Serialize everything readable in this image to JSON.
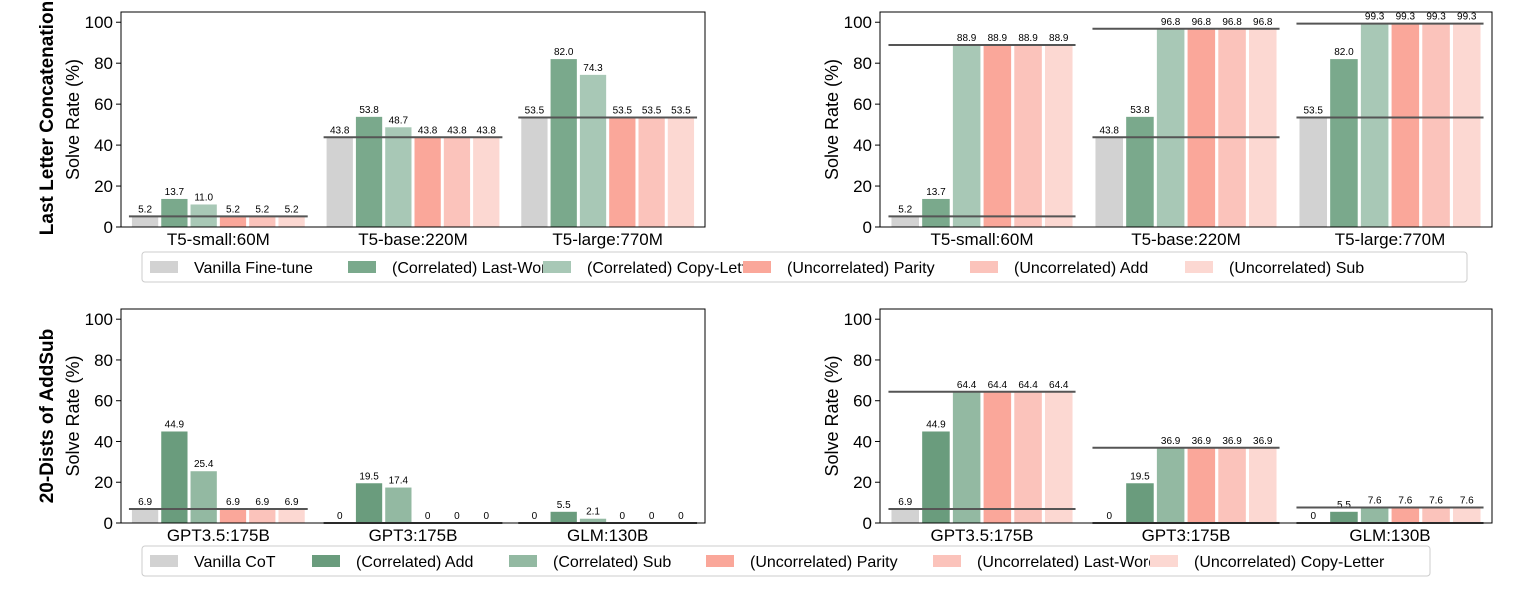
{
  "row_titles": [
    "Last Letter Concatenation",
    "20-Dists of AddSub"
  ],
  "legends": [
    {
      "items": [
        "Vanilla Fine-tune",
        "(Correlated) Last-Word",
        "(Correlated) Copy-Letter",
        "(Uncorrelated) Parity",
        "(Uncorrelated) Add",
        "(Uncorrelated) Sub"
      ],
      "colors": [
        "#d2d2d2",
        "#7aa98c",
        "#a8c8b6",
        "#faa79a",
        "#fbc3bb",
        "#fcd8d2"
      ]
    },
    {
      "items": [
        "Vanilla CoT",
        "(Correlated) Add",
        "(Correlated) Sub",
        "(Uncorrelated) Parity",
        "(Uncorrelated) Last-Word",
        "(Uncorrelated) Copy-Letter"
      ],
      "colors": [
        "#d2d2d2",
        "#6a9c7d",
        "#93b9a2",
        "#faa79a",
        "#fbc3bb",
        "#fcd8d2"
      ]
    }
  ],
  "chart_data": [
    {
      "type": "bar",
      "ylabel": "Solve Rate (%)",
      "ylim": [
        0,
        105
      ],
      "yticks": [
        0,
        20,
        40,
        60,
        80,
        100
      ],
      "categories": [
        "T5-small:60M",
        "T5-base:220M",
        "T5-large:770M"
      ],
      "series_names": [
        "Vanilla Fine-tune",
        "(Correlated) Last-Word",
        "(Correlated) Copy-Letter",
        "(Uncorrelated) Parity",
        "(Uncorrelated) Add",
        "(Uncorrelated) Sub"
      ],
      "values": [
        [
          5.2,
          13.7,
          11.0,
          5.2,
          5.2,
          5.2
        ],
        [
          43.8,
          53.8,
          48.7,
          43.8,
          43.8,
          43.8
        ],
        [
          53.5,
          82.0,
          74.3,
          53.5,
          53.5,
          53.5
        ]
      ],
      "labels": [
        [
          "5.2",
          "13.7",
          "11.0",
          "5.2",
          "5.2",
          "5.2"
        ],
        [
          "43.8",
          "53.8",
          "48.7",
          "43.8",
          "43.8",
          "43.8"
        ],
        [
          "53.5",
          "82.0",
          "74.3",
          "53.5",
          "53.5",
          "53.5"
        ]
      ],
      "reference_lines": [
        [
          5.2
        ],
        [
          43.8
        ],
        [
          53.5
        ]
      ]
    },
    {
      "type": "bar",
      "ylabel": "Solve Rate (%)",
      "ylim": [
        0,
        105
      ],
      "yticks": [
        0,
        20,
        40,
        60,
        80,
        100
      ],
      "categories": [
        "T5-small:60M",
        "T5-base:220M",
        "T5-large:770M"
      ],
      "series_names": [
        "Vanilla Fine-tune",
        "(Correlated) Last-Word",
        "(Correlated) Copy-Letter",
        "(Uncorrelated) Parity",
        "(Uncorrelated) Add",
        "(Uncorrelated) Sub"
      ],
      "values": [
        [
          5.2,
          13.7,
          88.9,
          88.9,
          88.9,
          88.9
        ],
        [
          43.8,
          53.8,
          96.8,
          96.8,
          96.8,
          96.8
        ],
        [
          53.5,
          82.0,
          99.3,
          99.3,
          99.3,
          99.3
        ]
      ],
      "labels": [
        [
          "5.2",
          "13.7",
          "88.9",
          "88.9",
          "88.9",
          "88.9"
        ],
        [
          "43.8",
          "53.8",
          "96.8",
          "96.8",
          "96.8",
          "96.8"
        ],
        [
          "53.5",
          "82.0",
          "99.3",
          "99.3",
          "99.3",
          "99.3"
        ]
      ],
      "reference_lines": [
        [
          5.2,
          88.9
        ],
        [
          43.8,
          96.8
        ],
        [
          53.5,
          99.3
        ]
      ]
    },
    {
      "type": "bar",
      "ylabel": "Solve Rate (%)",
      "ylim": [
        0,
        105
      ],
      "yticks": [
        0,
        20,
        40,
        60,
        80,
        100
      ],
      "categories": [
        "GPT3.5:175B",
        "GPT3:175B",
        "GLM:130B"
      ],
      "series_names": [
        "Vanilla CoT",
        "(Correlated) Add",
        "(Correlated) Sub",
        "(Uncorrelated) Parity",
        "(Uncorrelated) Last-Word",
        "(Uncorrelated) Copy-Letter"
      ],
      "values": [
        [
          6.9,
          44.9,
          25.4,
          6.9,
          6.9,
          6.9
        ],
        [
          0,
          19.5,
          17.4,
          0,
          0,
          0
        ],
        [
          0,
          5.5,
          2.1,
          0,
          0,
          0
        ]
      ],
      "labels": [
        [
          "6.9",
          "44.9",
          "25.4",
          "6.9",
          "6.9",
          "6.9"
        ],
        [
          "0",
          "19.5",
          "17.4",
          "0",
          "0",
          "0"
        ],
        [
          "0",
          "5.5",
          "2.1",
          "0",
          "0",
          "0"
        ]
      ],
      "reference_lines": [
        [
          6.9
        ],
        [
          0
        ],
        [
          0
        ]
      ]
    },
    {
      "type": "bar",
      "ylabel": "Solve Rate (%)",
      "ylim": [
        0,
        105
      ],
      "yticks": [
        0,
        20,
        40,
        60,
        80,
        100
      ],
      "categories": [
        "GPT3.5:175B",
        "GPT3:175B",
        "GLM:130B"
      ],
      "series_names": [
        "Vanilla CoT",
        "(Correlated) Add",
        "(Correlated) Sub",
        "(Uncorrelated) Parity",
        "(Uncorrelated) Last-Word",
        "(Uncorrelated) Copy-Letter"
      ],
      "values": [
        [
          6.9,
          44.9,
          64.4,
          64.4,
          64.4,
          64.4
        ],
        [
          0,
          19.5,
          36.9,
          36.9,
          36.9,
          36.9
        ],
        [
          0,
          5.5,
          7.6,
          7.6,
          7.6,
          7.6
        ]
      ],
      "labels": [
        [
          "6.9",
          "44.9",
          "64.4",
          "64.4",
          "64.4",
          "64.4"
        ],
        [
          "0",
          "19.5",
          "36.9",
          "36.9",
          "36.9",
          "36.9"
        ],
        [
          "0",
          "5.5",
          "7.6",
          "7.6",
          "7.6",
          "7.6"
        ]
      ],
      "reference_lines": [
        [
          6.9,
          64.4
        ],
        [
          0,
          36.9
        ],
        [
          0,
          7.6
        ]
      ]
    }
  ]
}
